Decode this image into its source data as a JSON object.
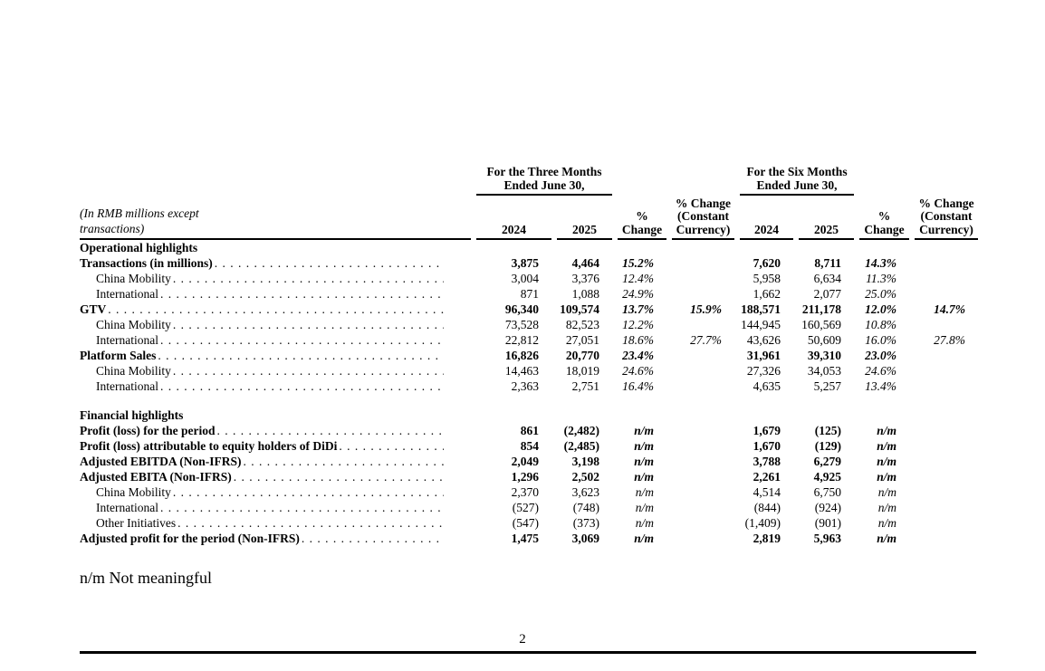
{
  "document": {
    "footnote": "n/m Not meaningful",
    "page_number": "2"
  },
  "table": {
    "unit_note": [
      "(In RMB millions except",
      "transactions)"
    ],
    "column_groups": [
      {
        "line1": "For the Three Months",
        "line2": "Ended June 30,"
      },
      {
        "line1": "For the Six Months",
        "line2": "Ended June 30,"
      }
    ],
    "column_headers": {
      "year_2024": "2024",
      "year_2025": "2025",
      "pct_change": [
        "%",
        "Change"
      ],
      "pct_change_cc": [
        "% Change",
        "(Constant",
        "Currency)"
      ]
    },
    "rows": [
      {
        "type": "section",
        "label": "Operational highlights"
      },
      {
        "type": "data",
        "label": "Transactions (in millions)",
        "bold": true,
        "indent": false,
        "values": [
          "3,875",
          "4,464",
          "15.2%",
          "",
          "7,620",
          "8,711",
          "14.3%",
          ""
        ]
      },
      {
        "type": "data",
        "label": "China Mobility",
        "bold": false,
        "indent": true,
        "values": [
          "3,004",
          "3,376",
          "12.4%",
          "",
          "5,958",
          "6,634",
          "11.3%",
          ""
        ]
      },
      {
        "type": "data",
        "label": "International",
        "bold": false,
        "indent": true,
        "values": [
          "871",
          "1,088",
          "24.9%",
          "",
          "1,662",
          "2,077",
          "25.0%",
          ""
        ]
      },
      {
        "type": "data",
        "label": "GTV",
        "bold": true,
        "indent": false,
        "values": [
          "96,340",
          "109,574",
          "13.7%",
          "15.9%",
          "188,571",
          "211,178",
          "12.0%",
          "14.7%"
        ]
      },
      {
        "type": "data",
        "label": "China Mobility",
        "bold": false,
        "indent": true,
        "values": [
          "73,528",
          "82,523",
          "12.2%",
          "",
          "144,945",
          "160,569",
          "10.8%",
          ""
        ]
      },
      {
        "type": "data",
        "label": "International",
        "bold": false,
        "indent": true,
        "values": [
          "22,812",
          "27,051",
          "18.6%",
          "27.7%",
          "43,626",
          "50,609",
          "16.0%",
          "27.8%"
        ]
      },
      {
        "type": "data",
        "label": "Platform Sales",
        "bold": true,
        "indent": false,
        "values": [
          "16,826",
          "20,770",
          "23.4%",
          "",
          "31,961",
          "39,310",
          "23.0%",
          ""
        ]
      },
      {
        "type": "data",
        "label": "China Mobility",
        "bold": false,
        "indent": true,
        "values": [
          "14,463",
          "18,019",
          "24.6%",
          "",
          "27,326",
          "34,053",
          "24.6%",
          ""
        ]
      },
      {
        "type": "data",
        "label": "International",
        "bold": false,
        "indent": true,
        "values": [
          "2,363",
          "2,751",
          "16.4%",
          "",
          "4,635",
          "5,257",
          "13.4%",
          ""
        ]
      },
      {
        "type": "spacer"
      },
      {
        "type": "section",
        "label": "Financial highlights"
      },
      {
        "type": "data",
        "label": "Profit (loss) for the period",
        "bold": true,
        "indent": false,
        "values": [
          "861",
          "(2,482)",
          "n/m",
          "",
          "1,679",
          "(125)",
          "n/m",
          ""
        ]
      },
      {
        "type": "data",
        "label": "Profit (loss) attributable to equity holders of DiDi",
        "bold": true,
        "indent": false,
        "values": [
          "854",
          "(2,485)",
          "n/m",
          "",
          "1,670",
          "(129)",
          "n/m",
          ""
        ]
      },
      {
        "type": "data",
        "label": "Adjusted EBITDA (Non-IFRS)",
        "bold": true,
        "indent": false,
        "values": [
          "2,049",
          "3,198",
          "n/m",
          "",
          "3,788",
          "6,279",
          "n/m",
          ""
        ]
      },
      {
        "type": "data",
        "label": "Adjusted EBITA (Non-IFRS)",
        "bold": true,
        "indent": false,
        "values": [
          "1,296",
          "2,502",
          "n/m",
          "",
          "2,261",
          "4,925",
          "n/m",
          ""
        ]
      },
      {
        "type": "data",
        "label": "China Mobility",
        "bold": false,
        "indent": true,
        "values": [
          "2,370",
          "3,623",
          "n/m",
          "",
          "4,514",
          "6,750",
          "n/m",
          ""
        ]
      },
      {
        "type": "data",
        "label": "International",
        "bold": false,
        "indent": true,
        "values": [
          "(527)",
          "(748)",
          "n/m",
          "",
          "(844)",
          "(924)",
          "n/m",
          ""
        ]
      },
      {
        "type": "data",
        "label": "Other Initiatives",
        "bold": false,
        "indent": true,
        "values": [
          "(547)",
          "(373)",
          "n/m",
          "",
          "(1,409)",
          "(901)",
          "n/m",
          ""
        ]
      },
      {
        "type": "data",
        "label": "Adjusted profit for the period (Non-IFRS)",
        "bold": true,
        "indent": false,
        "values": [
          "1,475",
          "3,069",
          "n/m",
          "",
          "2,819",
          "5,963",
          "n/m",
          ""
        ]
      }
    ]
  }
}
